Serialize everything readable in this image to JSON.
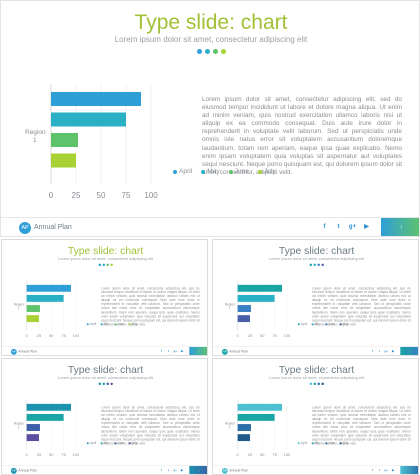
{
  "page": {
    "title": "Type slide: chart",
    "subtitle": "Lorem ipsum dolor sit amet, consectetur adipiscing elit",
    "description": "Lorem ipsum dolor sit amet, consectetur adipiscing elit, sed do eiusmod tempor incididunt ut labore et dolore magna aliqua. Ut enim ad minim veniam, quis nostrud exercitation ullamco laboris nisi ut aliquip ex ea commodo consequat. Duis aute irure dolor in reprehenderit in voluptate velit laborum. Sed ut perspiciatis unde omnis iste natus error sit voluptatem accusantium doloremque laudantium, totam rem aperiam, eaque ipsa quae explicabo. Nemo enim ipsam voluptatem quia voluptas sit aspernatur aut voluptates sequi nesciunt. Neque porro quisquam est, qui dolorem ipsum dolor sit amet, consectetur, adipisci velit.",
    "brand": "Annual Plan",
    "logo_text": "AP",
    "legend": [
      "April",
      "May",
      "June",
      "July"
    ],
    "social_icons": [
      "facebook-icon",
      "twitter-icon",
      "google-plus-icon",
      "youtube-icon"
    ],
    "social_glyphs": [
      "f",
      "t",
      "g+",
      "▶"
    ],
    "tile_icon": "up-arrow-icon",
    "tile_glyph": "↑"
  },
  "chart_data": {
    "type": "bar",
    "orientation": "horizontal",
    "category_label": "Region 1",
    "series": [
      {
        "name": "April",
        "value": 90
      },
      {
        "name": "May",
        "value": 75
      },
      {
        "name": "June",
        "value": 27
      },
      {
        "name": "July",
        "value": 25
      }
    ],
    "xticks": [
      0,
      25,
      50,
      75,
      100
    ],
    "xlim": [
      0,
      100
    ],
    "grid": "vertical"
  },
  "slides": [
    {
      "variant": "main",
      "title_color": "#a3c136",
      "bar_colors": [
        "#2f9fd8",
        "#2ab0c4",
        "#5fc36b",
        "#a8d134"
      ],
      "logo_color": "#2f9fd8",
      "tile_colors": [
        "#2f9fd8",
        "#5fc36b"
      ]
    },
    {
      "variant": "green",
      "title_color": "#a3c136",
      "bar_colors": [
        "#2f9fd8",
        "#2ab0c4",
        "#5fc36b",
        "#a8d134"
      ],
      "logo_color": "#2f9fd8",
      "tile_colors": [
        "#2f9fd8",
        "#5fc36b"
      ]
    },
    {
      "variant": "teal",
      "title_color": "#6b7c85",
      "bar_colors": [
        "#1aa4a4",
        "#2ab0c4",
        "#3a7fc4",
        "#4a5fa8"
      ],
      "logo_color": "#1aa4a4",
      "tile_colors": [
        "#1aa4a4",
        "#3a7fc4"
      ]
    },
    {
      "variant": "blue",
      "title_color": "#6b7c85",
      "bar_colors": [
        "#1d93b0",
        "#1aa4a4",
        "#3d5ea8",
        "#5a4fa0"
      ],
      "logo_color": "#1d93b0",
      "tile_colors": [
        "#1d93b0",
        "#3d5ea8"
      ]
    },
    {
      "variant": "navy",
      "title_color": "#6b7c85",
      "bar_colors": [
        "#4cc0d0",
        "#1aa4a4",
        "#2b6ea8",
        "#1f5a8a"
      ],
      "logo_color": "#4cc0d0",
      "tile_colors": [
        "#4cc0d0",
        "#2b6ea8"
      ]
    }
  ]
}
